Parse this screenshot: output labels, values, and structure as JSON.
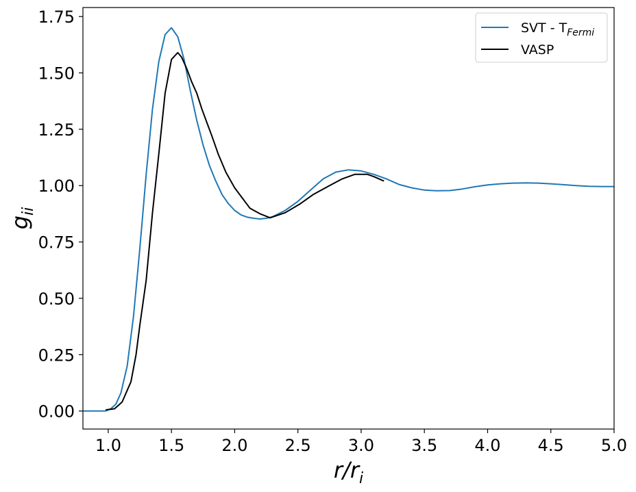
{
  "chart_data": {
    "type": "line",
    "xlabel": {
      "main": "r/r",
      "sub": "i"
    },
    "ylabel": {
      "main": "g",
      "sub": "ii"
    },
    "xlim": [
      0.8,
      5.0
    ],
    "ylim": [
      -0.08,
      1.79
    ],
    "x_ticks": [
      1.0,
      1.5,
      2.0,
      2.5,
      3.0,
      3.5,
      4.0,
      4.5,
      5.0
    ],
    "x_tick_labels": [
      "1.0",
      "1.5",
      "2.0",
      "2.5",
      "3.0",
      "3.5",
      "4.0",
      "4.5",
      "5.0"
    ],
    "y_ticks": [
      0.0,
      0.25,
      0.5,
      0.75,
      1.0,
      1.25,
      1.5,
      1.75
    ],
    "y_tick_labels": [
      "0.00",
      "0.25",
      "0.50",
      "0.75",
      "1.00",
      "1.25",
      "1.50",
      "1.75"
    ],
    "grid": false,
    "legend_position": "top-right",
    "series": [
      {
        "name": "SVT - T",
        "name_sub": "Fermi",
        "color": "#1f77b4",
        "points": [
          [
            0.8,
            0.0
          ],
          [
            0.9,
            0.0
          ],
          [
            0.98,
            0.0
          ],
          [
            1.02,
            0.01
          ],
          [
            1.06,
            0.03
          ],
          [
            1.1,
            0.08
          ],
          [
            1.15,
            0.2
          ],
          [
            1.2,
            0.42
          ],
          [
            1.25,
            0.72
          ],
          [
            1.3,
            1.05
          ],
          [
            1.35,
            1.34
          ],
          [
            1.4,
            1.55
          ],
          [
            1.45,
            1.67
          ],
          [
            1.5,
            1.7
          ],
          [
            1.55,
            1.66
          ],
          [
            1.6,
            1.56
          ],
          [
            1.65,
            1.42
          ],
          [
            1.7,
            1.29
          ],
          [
            1.75,
            1.18
          ],
          [
            1.8,
            1.09
          ],
          [
            1.85,
            1.02
          ],
          [
            1.9,
            0.96
          ],
          [
            1.95,
            0.92
          ],
          [
            2.0,
            0.89
          ],
          [
            2.05,
            0.87
          ],
          [
            2.1,
            0.86
          ],
          [
            2.15,
            0.855
          ],
          [
            2.2,
            0.852
          ],
          [
            2.25,
            0.855
          ],
          [
            2.3,
            0.862
          ],
          [
            2.4,
            0.89
          ],
          [
            2.5,
            0.93
          ],
          [
            2.6,
            0.98
          ],
          [
            2.7,
            1.03
          ],
          [
            2.8,
            1.06
          ],
          [
            2.9,
            1.07
          ],
          [
            3.0,
            1.065
          ],
          [
            3.1,
            1.05
          ],
          [
            3.2,
            1.03
          ],
          [
            3.3,
            1.005
          ],
          [
            3.4,
            0.99
          ],
          [
            3.5,
            0.98
          ],
          [
            3.6,
            0.977
          ],
          [
            3.7,
            0.978
          ],
          [
            3.8,
            0.985
          ],
          [
            3.9,
            0.995
          ],
          [
            4.0,
            1.003
          ],
          [
            4.1,
            1.008
          ],
          [
            4.2,
            1.011
          ],
          [
            4.3,
            1.012
          ],
          [
            4.4,
            1.011
          ],
          [
            4.5,
            1.008
          ],
          [
            4.6,
            1.004
          ],
          [
            4.7,
            1.0
          ],
          [
            4.8,
            0.997
          ],
          [
            4.9,
            0.996
          ],
          [
            5.0,
            0.996
          ]
        ]
      },
      {
        "name": "VASP",
        "color": "#000000",
        "points": [
          [
            0.98,
            0.005
          ],
          [
            1.05,
            0.01
          ],
          [
            1.11,
            0.04
          ],
          [
            1.18,
            0.13
          ],
          [
            1.22,
            0.25
          ],
          [
            1.25,
            0.38
          ],
          [
            1.3,
            0.58
          ],
          [
            1.35,
            0.88
          ],
          [
            1.4,
            1.14
          ],
          [
            1.45,
            1.41
          ],
          [
            1.5,
            1.56
          ],
          [
            1.55,
            1.59
          ],
          [
            1.58,
            1.57
          ],
          [
            1.62,
            1.52
          ],
          [
            1.66,
            1.46
          ],
          [
            1.7,
            1.41
          ],
          [
            1.74,
            1.34
          ],
          [
            1.78,
            1.28
          ],
          [
            1.82,
            1.22
          ],
          [
            1.87,
            1.14
          ],
          [
            1.93,
            1.06
          ],
          [
            2.0,
            0.99
          ],
          [
            2.12,
            0.9
          ],
          [
            2.2,
            0.875
          ],
          [
            2.28,
            0.857
          ],
          [
            2.4,
            0.88
          ],
          [
            2.52,
            0.92
          ],
          [
            2.62,
            0.96
          ],
          [
            2.75,
            1.0
          ],
          [
            2.85,
            1.03
          ],
          [
            2.95,
            1.05
          ],
          [
            3.05,
            1.05
          ],
          [
            3.1,
            1.04
          ],
          [
            3.18,
            1.02
          ]
        ]
      }
    ]
  }
}
